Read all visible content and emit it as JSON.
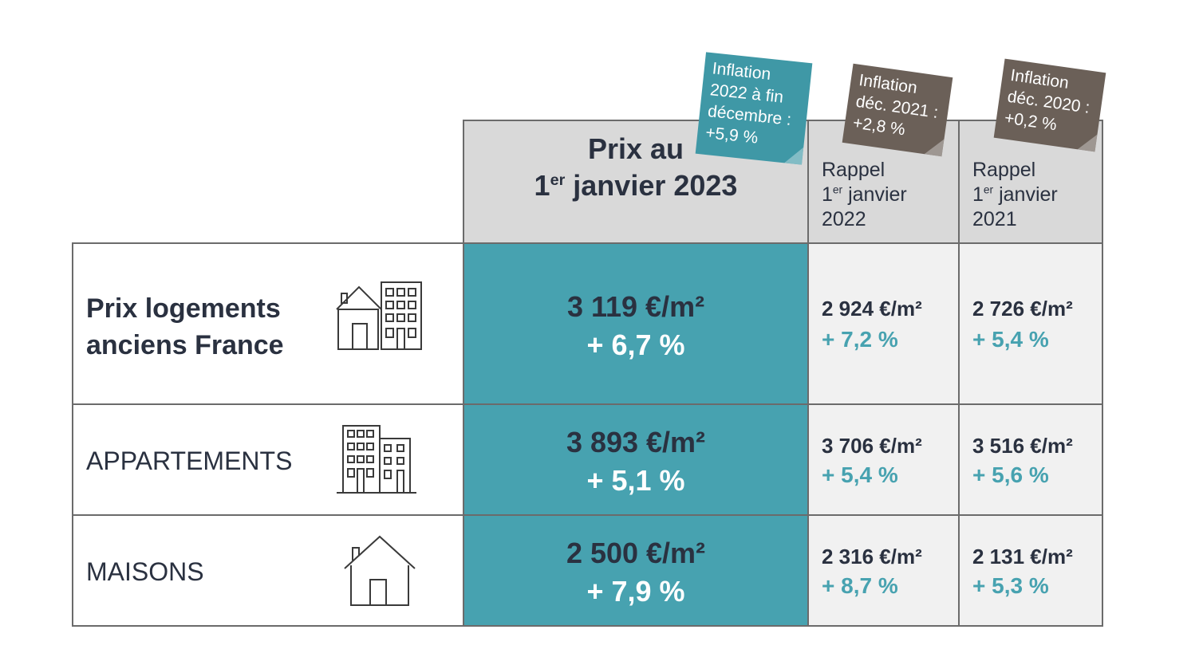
{
  "header": {
    "main_title_line1": "Prix au",
    "main_title_pre": "1",
    "main_title_sup": "er",
    "main_title_post": " janvier 2023",
    "col2022": {
      "word": "Rappel",
      "num": "1",
      "sup": "er",
      "post": " janvier",
      "year": "2022"
    },
    "col2021": {
      "word": "Rappel",
      "num": "1",
      "sup": "er",
      "post": " janvier",
      "year": "2021"
    }
  },
  "tags": {
    "teal": [
      "Inflation",
      "2022 à fin",
      "décembre :",
      "+5,9 %"
    ],
    "brown2021": [
      "Inflation",
      "déc. 2021 :",
      "+2,8 %"
    ],
    "brown2020": [
      "Inflation",
      "déc. 2020 :",
      "+0,2 %"
    ]
  },
  "rows": [
    {
      "label_line1": "Prix logements",
      "label_line2": "anciens France",
      "icon": "house-and-building-icon",
      "main_price": "3 119 €/m²",
      "main_pct": "+ 6,7 %",
      "p2022": "2 924 €/m²",
      "c2022": "+ 7,2 %",
      "p2021": "2 726 €/m²",
      "c2021": "+ 5,4 %"
    },
    {
      "label": "APPARTEMENTS",
      "icon": "apartment-buildings-icon",
      "main_price": "3 893 €/m²",
      "main_pct": "+ 5,1 %",
      "p2022": "3 706 €/m²",
      "c2022": "+ 5,4 %",
      "p2021": "3 516 €/m²",
      "c2021": "+ 5,6 %"
    },
    {
      "label": "MAISONS",
      "icon": "house-icon",
      "main_price": "2 500 €/m²",
      "main_pct": "+ 7,9 %",
      "p2022": "2 316 €/m²",
      "c2022": "+ 8,7 %",
      "p2021": "2 131 €/m²",
      "c2021": "+ 5,3 %"
    }
  ],
  "colors": {
    "accent_teal": "#47a2b0",
    "header_gray": "#d9d9d9",
    "side_gray": "#f1f1f1",
    "tag_brown": "#6b6058",
    "text_dark": "#2a3140"
  }
}
